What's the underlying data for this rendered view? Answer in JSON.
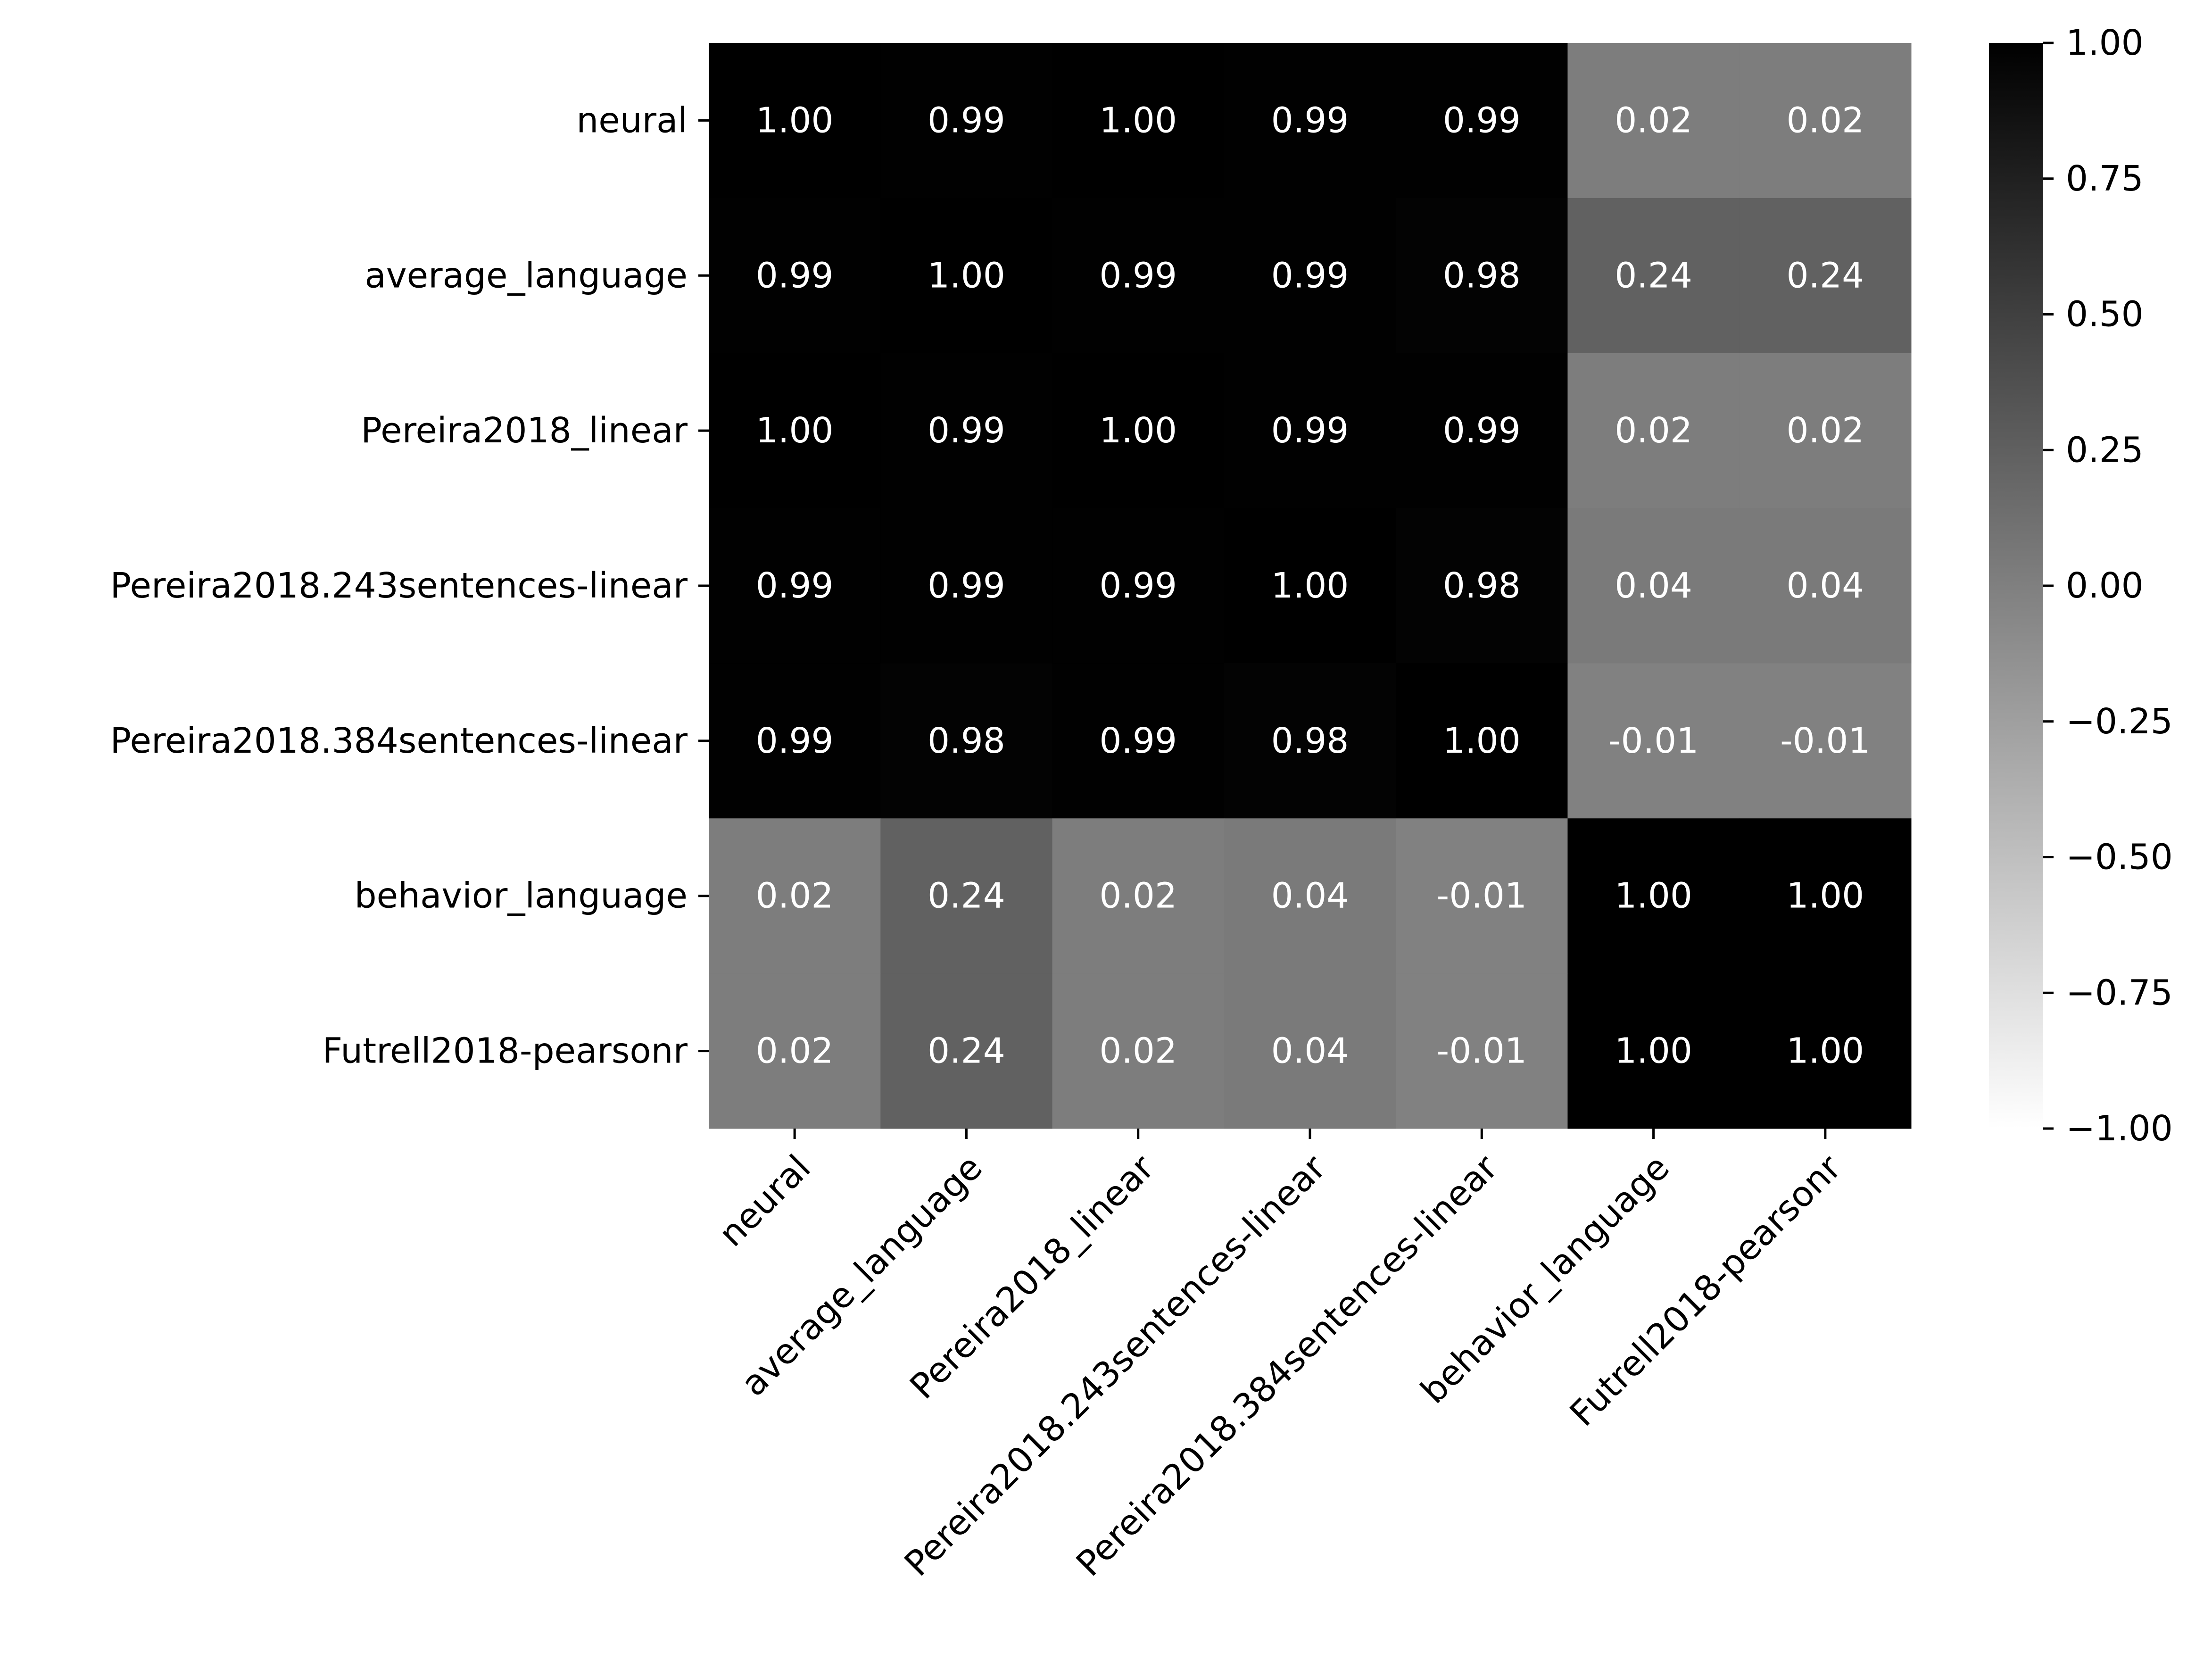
{
  "chart_data": {
    "type": "heatmap",
    "title": "",
    "xlabel": "",
    "ylabel": "",
    "categories": [
      "neural",
      "average_language",
      "Pereira2018_linear",
      "Pereira2018.243sentences-linear",
      "Pereira2018.384sentences-linear",
      "behavior_language",
      "Futrell2018-pearsonr"
    ],
    "values": [
      [
        1.0,
        0.99,
        1.0,
        0.99,
        0.99,
        0.02,
        0.02
      ],
      [
        0.99,
        1.0,
        0.99,
        0.99,
        0.98,
        0.24,
        0.24
      ],
      [
        1.0,
        0.99,
        1.0,
        0.99,
        0.99,
        0.02,
        0.02
      ],
      [
        0.99,
        0.99,
        0.99,
        1.0,
        0.98,
        0.04,
        0.04
      ],
      [
        0.99,
        0.98,
        0.99,
        0.98,
        1.0,
        -0.01,
        -0.01
      ],
      [
        0.02,
        0.24,
        0.02,
        0.04,
        -0.01,
        1.0,
        1.0
      ],
      [
        0.02,
        0.24,
        0.02,
        0.04,
        -0.01,
        1.0,
        1.0
      ]
    ],
    "cell_labels": [
      [
        "1.00",
        "0.99",
        "1.00",
        "0.99",
        "0.99",
        "0.02",
        "0.02"
      ],
      [
        "0.99",
        "1.00",
        "0.99",
        "0.99",
        "0.98",
        "0.24",
        "0.24"
      ],
      [
        "1.00",
        "0.99",
        "1.00",
        "0.99",
        "0.99",
        "0.02",
        "0.02"
      ],
      [
        "0.99",
        "0.99",
        "0.99",
        "1.00",
        "0.98",
        "0.04",
        "0.04"
      ],
      [
        "0.99",
        "0.98",
        "0.99",
        "0.98",
        "1.00",
        "-0.01",
        "-0.01"
      ],
      [
        "0.02",
        "0.24",
        "0.02",
        "0.04",
        "-0.01",
        "1.00",
        "1.00"
      ],
      [
        "0.02",
        "0.24",
        "0.02",
        "0.04",
        "-0.01",
        "1.00",
        "1.00"
      ]
    ],
    "colorbar": {
      "range": [
        -1.0,
        1.0
      ],
      "ticks": [
        1.0,
        0.75,
        0.5,
        0.25,
        0.0,
        -0.25,
        -0.5,
        -0.75,
        -1.0
      ],
      "tick_labels": [
        "1.00",
        "0.75",
        "0.50",
        "0.25",
        "0.00",
        "−0.25",
        "−0.50",
        "−0.75",
        "−1.00"
      ],
      "colormap": "gray_r",
      "low_color": "#ffffff",
      "high_color": "#000000"
    },
    "grid": false,
    "legend": "colorbar-right"
  }
}
